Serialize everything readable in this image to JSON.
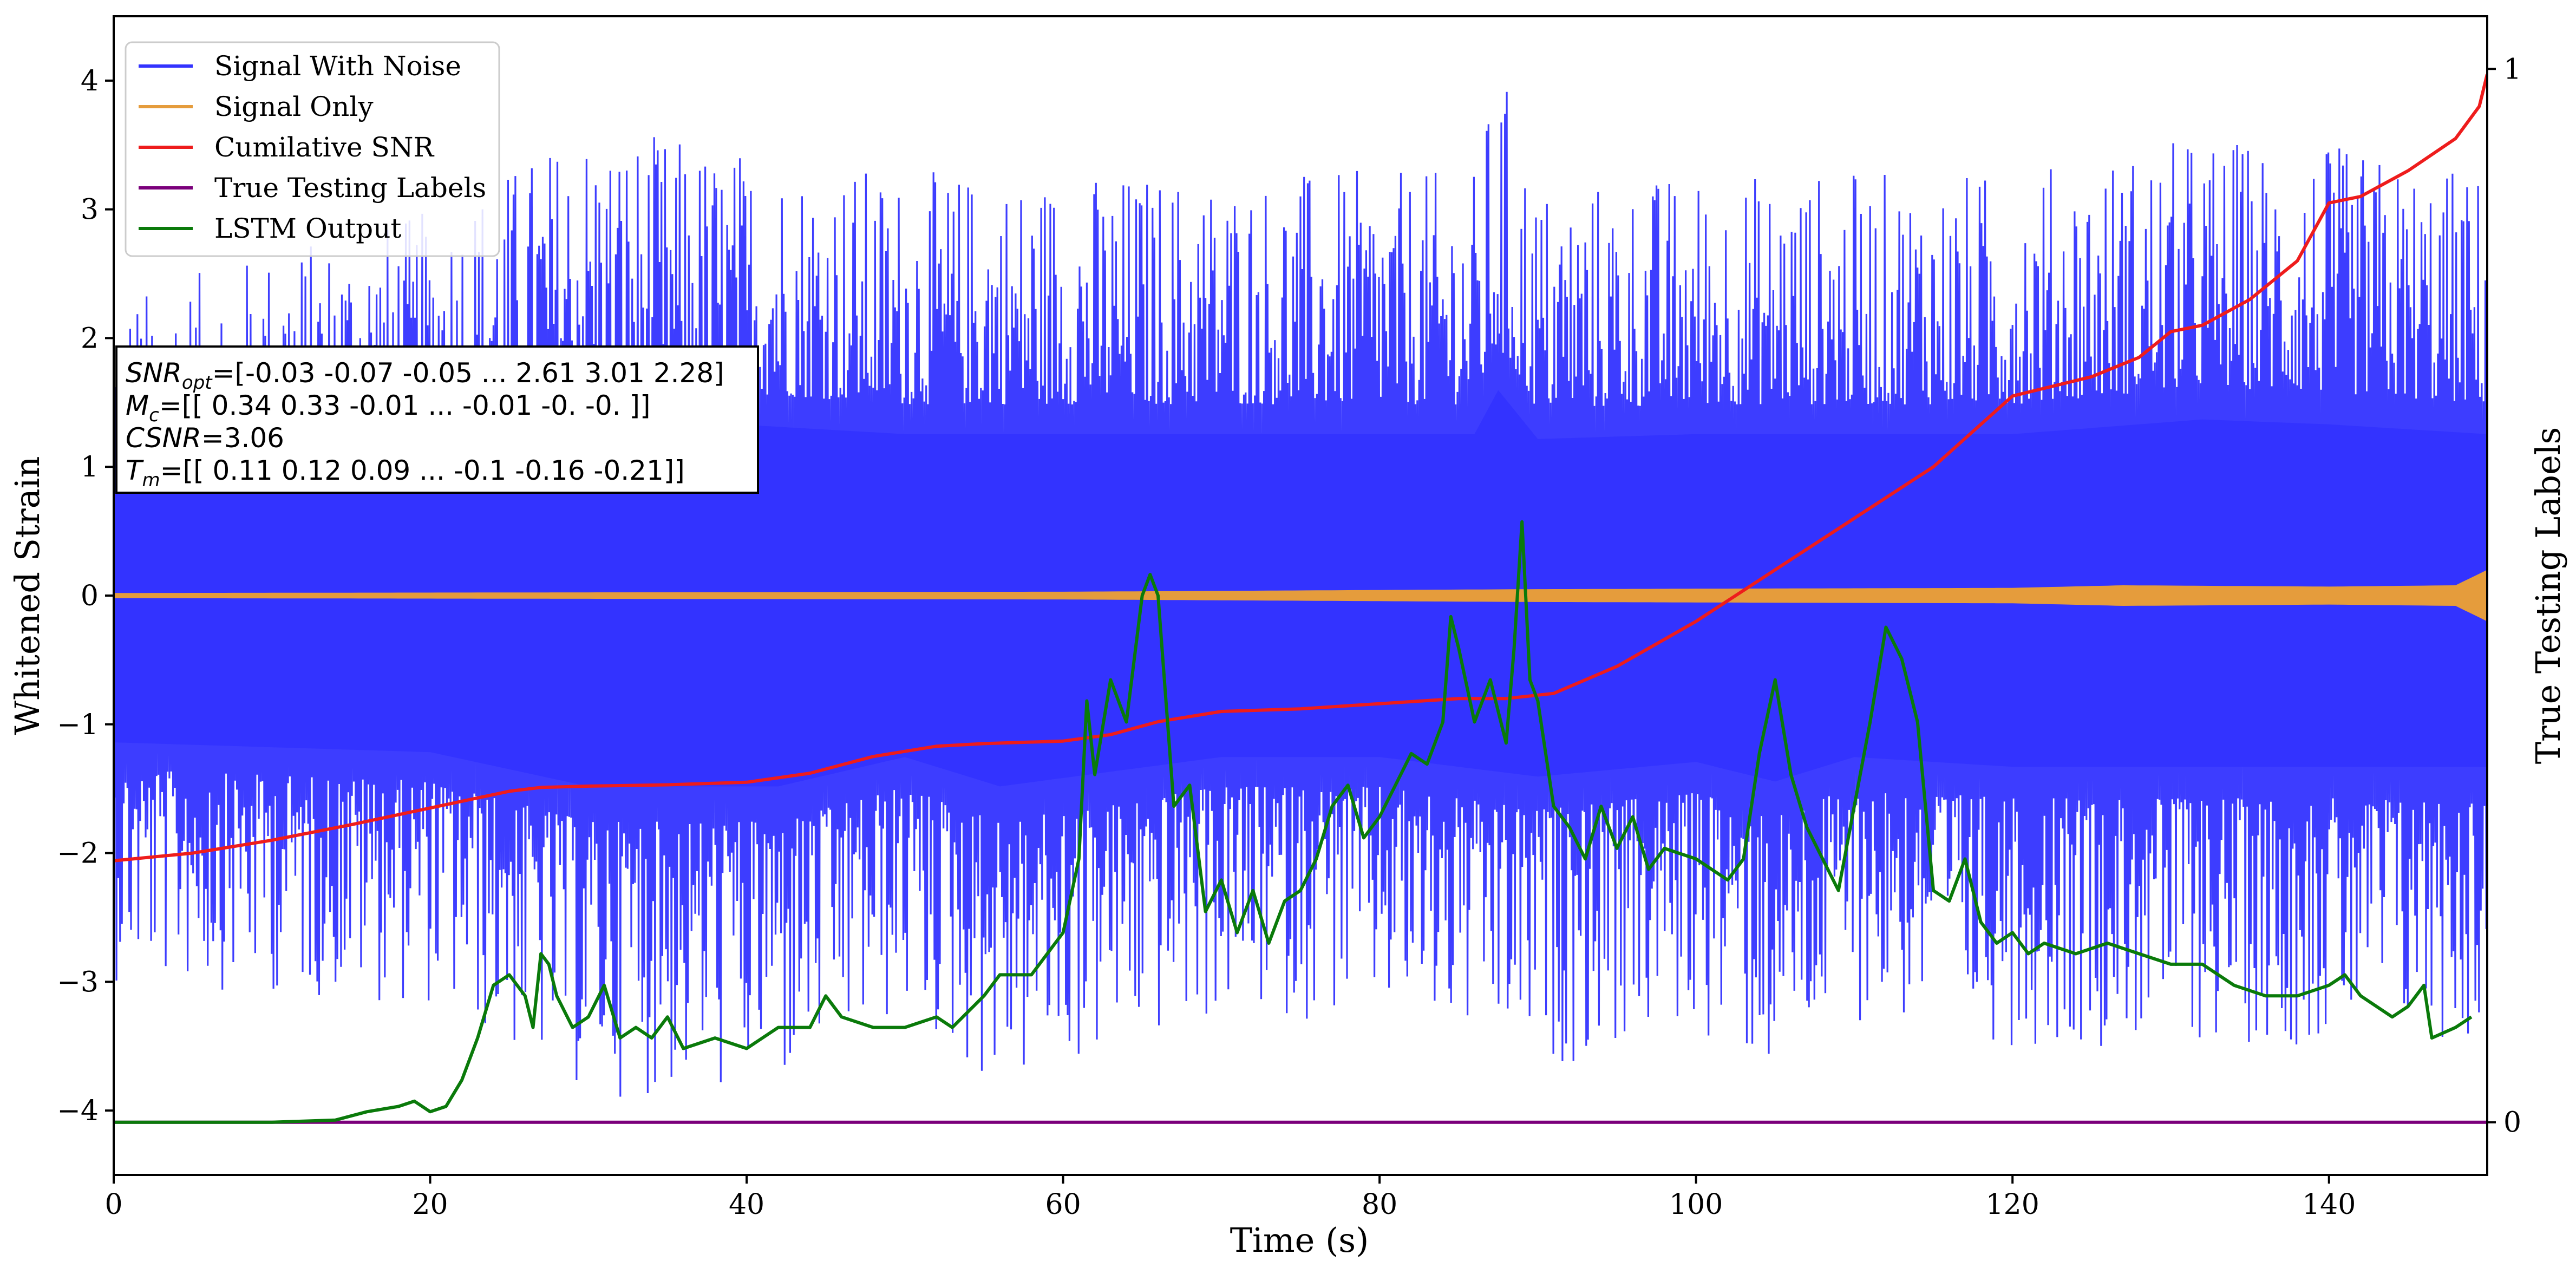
{
  "chart_data": {
    "type": "line",
    "xlabel": "Time (s)",
    "ylabel": "Whitened Strain",
    "y2label": "True Testing Labels",
    "xlim": [
      0,
      150
    ],
    "ylim": [
      -4.5,
      4.5
    ],
    "y2lim": [
      -0.05,
      1.05
    ],
    "x_ticks": [
      0,
      20,
      40,
      60,
      80,
      100,
      120,
      140
    ],
    "y_ticks": [
      -4,
      -3,
      -2,
      -1,
      0,
      1,
      2,
      3,
      4
    ],
    "y2_ticks": [
      0,
      1
    ],
    "grid": false,
    "legend_position": "upper-left",
    "series": [
      {
        "name": "Signal With Noise",
        "axis": "left",
        "color": "#3333ff",
        "kind": "noise",
        "envelope_high": [
          [
            0,
            2.3
          ],
          [
            10,
            2.7
          ],
          [
            20,
            3.0
          ],
          [
            30,
            3.7
          ],
          [
            34,
            3.6
          ],
          [
            50,
            3.3
          ],
          [
            60,
            3.3
          ],
          [
            70,
            3.3
          ],
          [
            80,
            3.3
          ],
          [
            86,
            3.3
          ],
          [
            87.5,
            4.2
          ],
          [
            90,
            3.2
          ],
          [
            100,
            3.3
          ],
          [
            110,
            3.3
          ],
          [
            120,
            3.3
          ],
          [
            132,
            3.6
          ],
          [
            140,
            3.5
          ],
          [
            150,
            3.3
          ]
        ],
        "envelope_low": [
          [
            0,
            -3.0
          ],
          [
            10,
            -3.1
          ],
          [
            20,
            -3.2
          ],
          [
            30,
            -3.9
          ],
          [
            42,
            -3.9
          ],
          [
            50,
            -3.3
          ],
          [
            56,
            -3.9
          ],
          [
            70,
            -3.3
          ],
          [
            80,
            -3.3
          ],
          [
            90,
            -3.7
          ],
          [
            100,
            -3.4
          ],
          [
            105,
            -3.8
          ],
          [
            110,
            -3.3
          ],
          [
            120,
            -3.5
          ],
          [
            132,
            -3.5
          ],
          [
            140,
            -3.5
          ],
          [
            150,
            -3.5
          ]
        ]
      },
      {
        "name": "Signal Only",
        "axis": "left",
        "color": "#e59c3c",
        "kind": "band",
        "amplitude": [
          [
            0,
            0.02
          ],
          [
            60,
            0.03
          ],
          [
            90,
            0.05
          ],
          [
            120,
            0.06
          ],
          [
            127,
            0.08
          ],
          [
            140,
            0.07
          ],
          [
            148,
            0.08
          ],
          [
            150,
            0.2
          ]
        ]
      },
      {
        "name": "Cumilative SNR",
        "axis": "left",
        "color": "#ee1c1c",
        "points": [
          [
            0,
            -2.06
          ],
          [
            5,
            -2.0
          ],
          [
            10,
            -1.9
          ],
          [
            15,
            -1.78
          ],
          [
            20,
            -1.65
          ],
          [
            25,
            -1.52
          ],
          [
            27,
            -1.49
          ],
          [
            30,
            -1.48
          ],
          [
            35,
            -1.47
          ],
          [
            40,
            -1.45
          ],
          [
            44,
            -1.38
          ],
          [
            48,
            -1.25
          ],
          [
            52,
            -1.17
          ],
          [
            55,
            -1.15
          ],
          [
            60,
            -1.13
          ],
          [
            63,
            -1.08
          ],
          [
            66,
            -0.98
          ],
          [
            70,
            -0.9
          ],
          [
            75,
            -0.88
          ],
          [
            80,
            -0.84
          ],
          [
            85,
            -0.8
          ],
          [
            88,
            -0.8
          ],
          [
            91,
            -0.76
          ],
          [
            95,
            -0.55
          ],
          [
            100,
            -0.2
          ],
          [
            105,
            0.2
          ],
          [
            110,
            0.6
          ],
          [
            115,
            1.0
          ],
          [
            120,
            1.55
          ],
          [
            125,
            1.7
          ],
          [
            128,
            1.85
          ],
          [
            130,
            2.05
          ],
          [
            132,
            2.1
          ],
          [
            135,
            2.3
          ],
          [
            138,
            2.6
          ],
          [
            140,
            3.05
          ],
          [
            142,
            3.1
          ],
          [
            145,
            3.3
          ],
          [
            148,
            3.55
          ],
          [
            149.5,
            3.8
          ],
          [
            150,
            4.05
          ]
        ]
      },
      {
        "name": "True Testing Labels",
        "axis": "right",
        "color": "#7b007b",
        "points": [
          [
            0,
            0
          ],
          [
            150,
            0
          ]
        ]
      },
      {
        "name": "LSTM Output",
        "axis": "right",
        "color": "#0a7a0a",
        "points": [
          [
            0,
            0
          ],
          [
            5,
            0
          ],
          [
            10,
            0
          ],
          [
            14,
            0.002
          ],
          [
            16,
            0.01
          ],
          [
            18,
            0.015
          ],
          [
            19,
            0.02
          ],
          [
            20,
            0.01
          ],
          [
            21,
            0.015
          ],
          [
            22,
            0.04
          ],
          [
            23,
            0.08
          ],
          [
            24,
            0.13
          ],
          [
            25,
            0.14
          ],
          [
            26,
            0.12
          ],
          [
            26.5,
            0.09
          ],
          [
            27,
            0.16
          ],
          [
            27.5,
            0.15
          ],
          [
            28,
            0.12
          ],
          [
            29,
            0.09
          ],
          [
            30,
            0.1
          ],
          [
            31,
            0.13
          ],
          [
            32,
            0.08
          ],
          [
            33,
            0.09
          ],
          [
            34,
            0.08
          ],
          [
            35,
            0.1
          ],
          [
            36,
            0.07
          ],
          [
            38,
            0.08
          ],
          [
            40,
            0.07
          ],
          [
            42,
            0.09
          ],
          [
            44,
            0.09
          ],
          [
            45,
            0.12
          ],
          [
            46,
            0.1
          ],
          [
            48,
            0.09
          ],
          [
            50,
            0.09
          ],
          [
            52,
            0.1
          ],
          [
            53,
            0.09
          ],
          [
            55,
            0.12
          ],
          [
            56,
            0.14
          ],
          [
            58,
            0.14
          ],
          [
            60,
            0.18
          ],
          [
            61,
            0.25
          ],
          [
            61.5,
            0.4
          ],
          [
            62,
            0.33
          ],
          [
            63,
            0.42
          ],
          [
            64,
            0.38
          ],
          [
            65,
            0.5
          ],
          [
            65.5,
            0.52
          ],
          [
            66,
            0.5
          ],
          [
            67,
            0.3
          ],
          [
            68,
            0.32
          ],
          [
            69,
            0.2
          ],
          [
            70,
            0.23
          ],
          [
            71,
            0.18
          ],
          [
            72,
            0.22
          ],
          [
            73,
            0.17
          ],
          [
            74,
            0.21
          ],
          [
            75,
            0.22
          ],
          [
            76,
            0.25
          ],
          [
            77,
            0.3
          ],
          [
            78,
            0.32
          ],
          [
            79,
            0.27
          ],
          [
            80,
            0.29
          ],
          [
            81,
            0.32
          ],
          [
            82,
            0.35
          ],
          [
            83,
            0.34
          ],
          [
            84,
            0.38
          ],
          [
            84.5,
            0.48
          ],
          [
            85,
            0.45
          ],
          [
            86,
            0.38
          ],
          [
            87,
            0.42
          ],
          [
            88,
            0.36
          ],
          [
            88.5,
            0.45
          ],
          [
            89,
            0.57
          ],
          [
            89.5,
            0.42
          ],
          [
            90,
            0.4
          ],
          [
            91,
            0.3
          ],
          [
            92,
            0.28
          ],
          [
            93,
            0.25
          ],
          [
            94,
            0.3
          ],
          [
            95,
            0.26
          ],
          [
            96,
            0.29
          ],
          [
            97,
            0.24
          ],
          [
            98,
            0.26
          ],
          [
            100,
            0.25
          ],
          [
            102,
            0.23
          ],
          [
            103,
            0.25
          ],
          [
            104,
            0.35
          ],
          [
            105,
            0.42
          ],
          [
            106,
            0.33
          ],
          [
            107,
            0.28
          ],
          [
            108,
            0.25
          ],
          [
            109,
            0.22
          ],
          [
            110,
            0.3
          ],
          [
            111,
            0.38
          ],
          [
            112,
            0.47
          ],
          [
            113,
            0.44
          ],
          [
            114,
            0.38
          ],
          [
            115,
            0.22
          ],
          [
            116,
            0.21
          ],
          [
            117,
            0.25
          ],
          [
            118,
            0.19
          ],
          [
            119,
            0.17
          ],
          [
            120,
            0.18
          ],
          [
            121,
            0.16
          ],
          [
            122,
            0.17
          ],
          [
            124,
            0.16
          ],
          [
            126,
            0.17
          ],
          [
            128,
            0.16
          ],
          [
            130,
            0.15
          ],
          [
            132,
            0.15
          ],
          [
            134,
            0.13
          ],
          [
            136,
            0.12
          ],
          [
            138,
            0.12
          ],
          [
            140,
            0.13
          ],
          [
            141,
            0.14
          ],
          [
            142,
            0.12
          ],
          [
            144,
            0.1
          ],
          [
            145,
            0.11
          ],
          [
            146,
            0.13
          ],
          [
            146.5,
            0.08
          ],
          [
            148,
            0.09
          ],
          [
            149,
            0.1
          ]
        ]
      }
    ],
    "annotation_lines": [
      "$SNR_{opt}$=[-0.03 -0.07 -0.05 ...  2.61  3.01  2.28]",
      "$M_{c}$=[[ 0.34  0.33 -0.01 ... -0.01 -0.   -0.  ]]",
      "$CSNR$=3.06",
      "$T_{m}$=[[ 0.11  0.12  0.09 ... -0.1  -0.16 -0.21]]"
    ]
  }
}
